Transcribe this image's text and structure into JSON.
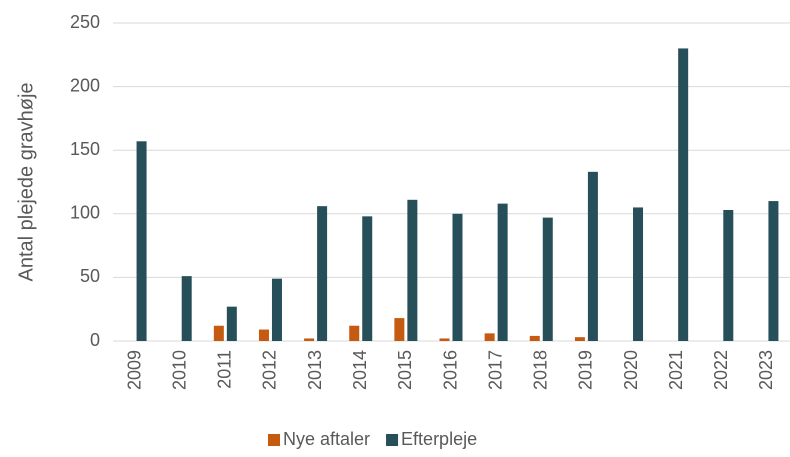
{
  "chart_data": {
    "type": "bar",
    "y_label": "Antal plejede gravhøje",
    "categories": [
      "2009",
      "2010",
      "2011",
      "2012",
      "2013",
      "2014",
      "2015",
      "2016",
      "2017",
      "2018",
      "2019",
      "2020",
      "2021",
      "2022",
      "2023"
    ],
    "series": [
      {
        "name": "Nye aftaler",
        "color": "#c55a11",
        "values": [
          0,
          0,
          12,
          9,
          2,
          12,
          18,
          2,
          6,
          4,
          3,
          0,
          0,
          0,
          0
        ]
      },
      {
        "name": "Efterpleje",
        "color": "#264f5a",
        "values": [
          157,
          51,
          27,
          49,
          106,
          98,
          111,
          100,
          108,
          97,
          133,
          105,
          230,
          103,
          110
        ]
      }
    ],
    "ylim": [
      0,
      250
    ],
    "yticks": [
      0,
      50,
      100,
      150,
      200,
      250
    ],
    "grid": true,
    "legend": "bottom"
  }
}
